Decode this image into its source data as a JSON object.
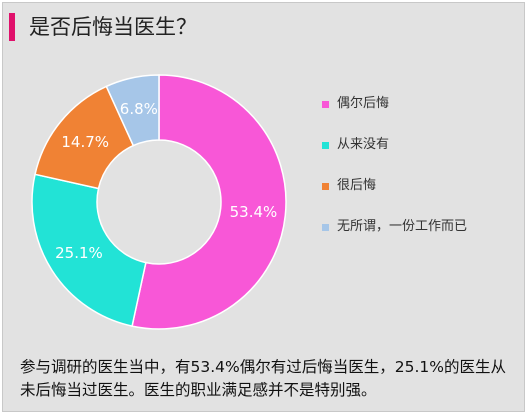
{
  "page": {
    "title": "是否后悔当医生？",
    "caption": "参与调研的医生当中，有53.4%偶尔有过后悔当医生，25.1%的医生从未后悔当过医生。医生的职业满足感并不是特别强。"
  },
  "chart_data": {
    "type": "pie",
    "donut": true,
    "title": "是否后悔当医生？",
    "legend_position": "right",
    "slices": [
      {
        "label": "偶尔后悔",
        "value": 53.4,
        "display": "53.4%",
        "color": "#f857d7"
      },
      {
        "label": "从来没有",
        "value": 25.1,
        "display": "25.1%",
        "color": "#22e3d6"
      },
      {
        "label": "很后悔",
        "value": 14.7,
        "display": "14.7%",
        "color": "#f08234"
      },
      {
        "label": "无所谓，一份工作而已",
        "value": 6.8,
        "display": "6.8%",
        "color": "#a6c6e8"
      }
    ]
  }
}
